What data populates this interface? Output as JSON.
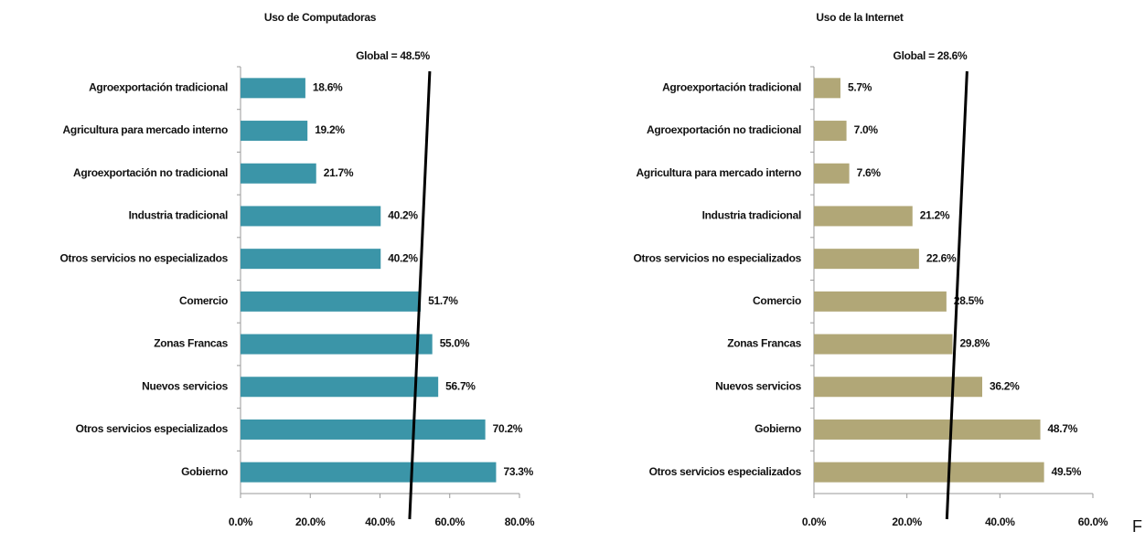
{
  "chart_data": [
    {
      "type": "barh",
      "title": "Uso de Computadoras",
      "color": "#3b95a8",
      "categories": [
        "Agroexportación tradicional",
        "Agricultura para mercado interno",
        "Agroexportación no tradicional",
        "Industria tradicional",
        "Otros servicios no especializados",
        "Comercio",
        "Zonas Francas",
        "Nuevos servicios",
        "Otros servicios especializados",
        "Gobierno"
      ],
      "values": [
        18.6,
        19.2,
        21.7,
        40.2,
        40.2,
        51.7,
        55.0,
        56.7,
        70.2,
        73.3
      ],
      "value_labels": [
        "18.6%",
        "19.2%",
        "21.7%",
        "40.2%",
        "40.2%",
        "51.7%",
        "55.0%",
        "56.7%",
        "70.2%",
        "73.3%"
      ],
      "xlim": [
        0,
        80
      ],
      "xticks": [
        {
          "value": 0,
          "label": "0.0%"
        },
        {
          "value": 20,
          "label": "20.0%"
        },
        {
          "value": 40,
          "label": "40.0%"
        },
        {
          "value": 60,
          "label": "60.0%"
        },
        {
          "value": 80,
          "label": "80.0%"
        }
      ],
      "reference_line": {
        "value": 48.5,
        "label": "Global = 48.5%"
      }
    },
    {
      "type": "barh",
      "title": "Uso de la Internet",
      "color": "#b1a777",
      "categories": [
        "Agroexportación tradicional",
        "Agroexportación no tradicional",
        "Agricultura para mercado interno",
        "Industria tradicional",
        "Otros servicios no especializados",
        "Comercio",
        "Zonas Francas",
        "Nuevos servicios",
        "Gobierno",
        "Otros servicios especializados"
      ],
      "values": [
        5.7,
        7.0,
        7.6,
        21.2,
        22.6,
        28.5,
        29.8,
        36.2,
        48.7,
        49.5
      ],
      "value_labels": [
        "5.7%",
        "7.0%",
        "7.6%",
        "21.2%",
        "22.6%",
        "28.5%",
        "29.8%",
        "36.2%",
        "48.7%",
        "49.5%"
      ],
      "xlim": [
        0,
        60
      ],
      "xticks": [
        {
          "value": 0,
          "label": "0.0%"
        },
        {
          "value": 20,
          "label": "20.0%"
        },
        {
          "value": 40,
          "label": "40.0%"
        },
        {
          "value": 60,
          "label": "60.0%"
        }
      ],
      "reference_line": {
        "value": 28.6,
        "label": "Global = 28.6%"
      }
    }
  ],
  "trailing_text": "F"
}
